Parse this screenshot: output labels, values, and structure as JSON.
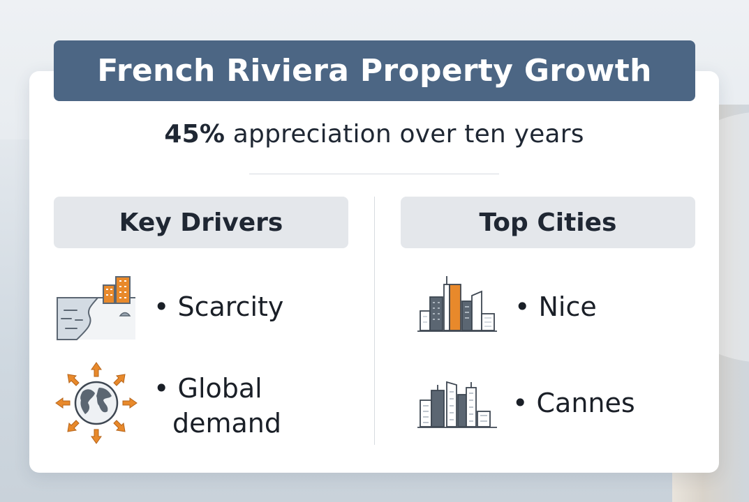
{
  "title": "French Riviera Property Growth",
  "subtitle": {
    "highlight": "45%",
    "rest": " appreciation over ten years"
  },
  "columns": {
    "drivers": {
      "heading": "Key Drivers",
      "items": [
        {
          "text": "• Scarcity",
          "icon": "coastline-buildings-icon"
        },
        {
          "text_line1": "• Global",
          "text_line2": "demand",
          "icon": "globe-arrows-icon"
        }
      ]
    },
    "cities": {
      "heading": "Top Cities",
      "items": [
        {
          "text": "• Nice",
          "icon": "nice-skyline-icon"
        },
        {
          "text": "• Cannes",
          "icon": "cannes-skyline-icon"
        }
      ]
    }
  },
  "colors": {
    "banner": "#4c6684",
    "accent_orange": "#e8892b",
    "icon_gray": "#5b6672",
    "heading_bg": "#e4e7eb"
  }
}
